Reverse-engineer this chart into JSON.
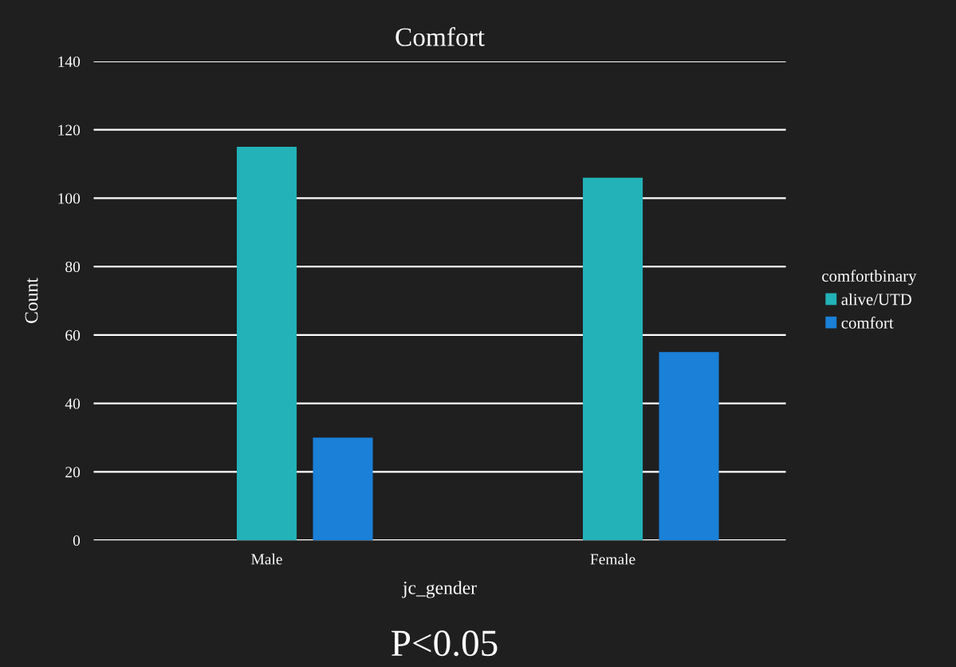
{
  "chart_data": {
    "type": "bar",
    "title": "Comfort",
    "xlabel": "jc_gender",
    "ylabel": "Count",
    "legend_title": "comfortbinary",
    "categories": [
      "Male",
      "Female"
    ],
    "series": [
      {
        "name": "alive/UTD",
        "color": "#22b2b8",
        "values": [
          115,
          106
        ]
      },
      {
        "name": "comfort",
        "color": "#1a80d8",
        "values": [
          30,
          55
        ]
      }
    ],
    "ylim": [
      0,
      140
    ],
    "yticks": [
      0,
      20,
      40,
      60,
      80,
      100,
      120,
      140
    ],
    "grid": "y",
    "legend": "right",
    "annotations": [
      "P<0.05"
    ]
  }
}
